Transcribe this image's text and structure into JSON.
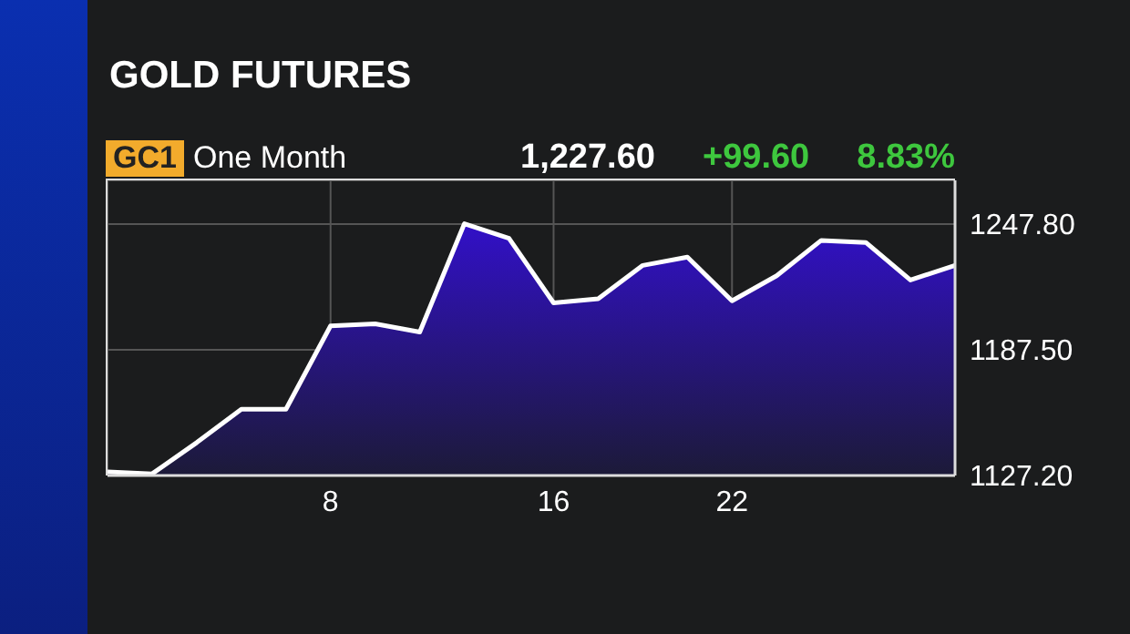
{
  "chart_data": {
    "type": "area",
    "title": "GOLD FUTURES",
    "annotations": [
      "GC1",
      "One Month",
      "1,227.60",
      "+99.60",
      "8.83%"
    ],
    "categories": [
      null,
      null,
      null,
      null,
      null,
      "8",
      null,
      null,
      null,
      null,
      "16",
      null,
      null,
      null,
      "22",
      null,
      null,
      null,
      null,
      null
    ],
    "series": [
      {
        "color": "#3210c8",
        "values": [
          1129,
          1128,
          1143,
          1159,
          1159,
          1199,
          1200,
          1196,
          1248,
          1241,
          1210,
          1212,
          1228,
          1232,
          1211,
          1223,
          1240,
          1239,
          1221,
          1228
        ]
      }
    ],
    "ylim": [
      1127.2,
      1268.8
    ],
    "yticks": [
      {
        "value": 1127.2,
        "label": "1127.20"
      },
      {
        "value": 1187.5,
        "label": "1187.50"
      },
      {
        "value": 1247.8,
        "label": "1247.80"
      }
    ],
    "grid": true,
    "marker": "none",
    "line_style": "solid"
  }
}
